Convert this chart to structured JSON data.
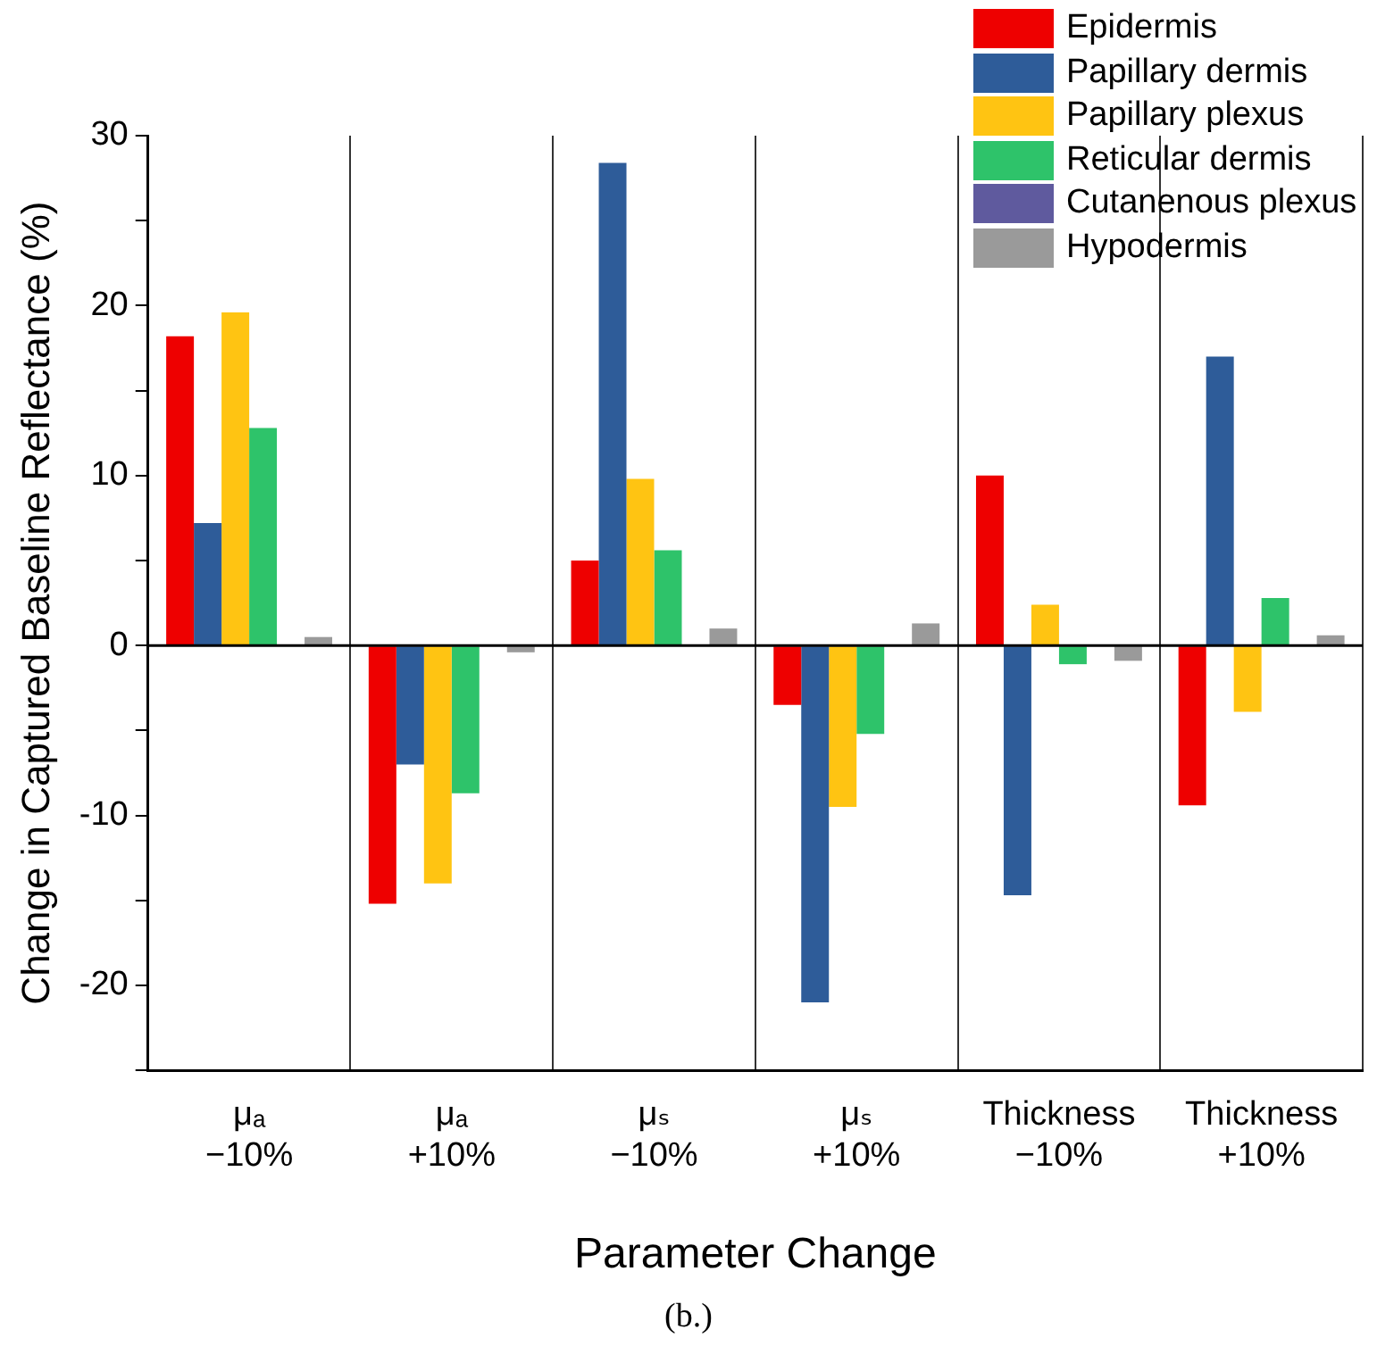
{
  "chart_data": {
    "type": "bar",
    "xlabel": "Parameter Change",
    "ylabel": "Change in Captured Baseline Reflectance (%)",
    "annotations": [
      "(b.)"
    ],
    "categories": [
      "μₐ\n−10%",
      "μₐ\n+10%",
      "μₛ\n−10%",
      "μₛ\n+10%",
      "Thickness\n−10%",
      "Thickness\n+10%"
    ],
    "series": [
      {
        "name": "Epidermis",
        "color": "#ee0000",
        "values": [
          18.2,
          -15.2,
          5.0,
          -3.5,
          10.0,
          -9.4
        ]
      },
      {
        "name": "Papillary dermis",
        "color": "#2e5c99",
        "values": [
          7.2,
          -7.0,
          28.4,
          -21.0,
          -14.7,
          17.0
        ]
      },
      {
        "name": "Papillary plexus",
        "color": "#ffc412",
        "values": [
          19.6,
          -14.0,
          9.8,
          -9.5,
          2.4,
          -3.9
        ]
      },
      {
        "name": "Reticular dermis",
        "color": "#2ec36a",
        "values": [
          12.8,
          -8.7,
          5.6,
          -5.2,
          -1.1,
          2.8
        ]
      },
      {
        "name": "Cutanenous plexus",
        "color": "#5f5a9e",
        "values": [
          0,
          0,
          0,
          0,
          0,
          0
        ]
      },
      {
        "name": "Hypodermis",
        "color": "#9a9a9a",
        "values": [
          0.5,
          -0.4,
          1.0,
          1.3,
          -0.9,
          0.6
        ]
      }
    ],
    "ylim": [
      -25,
      30
    ],
    "yticks": [
      {
        "value": -25,
        "label": null
      },
      -20,
      {
        "value": -15,
        "label": null
      },
      -10,
      {
        "value": -5,
        "label": null
      },
      0,
      {
        "value": 5,
        "label": null
      },
      10,
      {
        "value": 15,
        "label": null
      },
      20,
      {
        "value": 25,
        "label": null
      },
      30
    ],
    "ref_lines": [
      {
        "axis": "y",
        "value": 0,
        "color": "#000000"
      }
    ],
    "grid": "x",
    "legend": "top right"
  }
}
